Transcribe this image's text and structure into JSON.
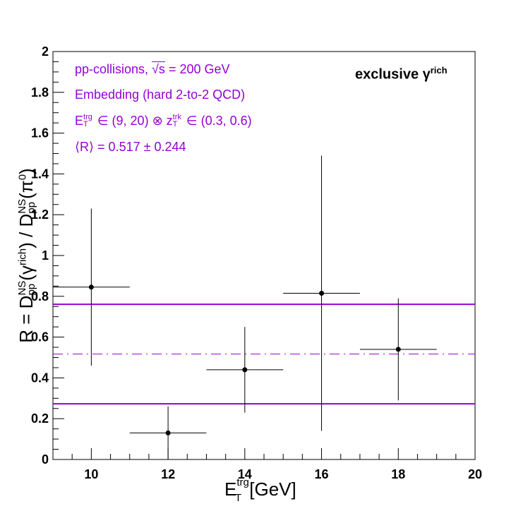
{
  "chart_data": {
    "type": "scatter",
    "title": "exclusive γ^rich",
    "title_main": "exclusive γ",
    "title_sup": "rich",
    "xlabel": "E_T^trg [GeV]",
    "ylabel": "R = D_pp^NS(γ^rich) / D_pp^NS(π^0)",
    "xlim": [
      9,
      20
    ],
    "ylim": [
      0,
      2
    ],
    "x_ticks": [
      "10",
      "12",
      "14",
      "16",
      "18",
      "20"
    ],
    "y_ticks": [
      "0",
      "0.2",
      "0.4",
      "0.6",
      "0.8",
      "1",
      "1.2",
      "1.4",
      "1.6",
      "1.8",
      "2"
    ],
    "grid": false,
    "series": [
      {
        "x": [
          10,
          12,
          14,
          16,
          18
        ],
        "y": [
          0.845,
          0.13,
          0.44,
          0.815,
          0.54
        ],
        "x_err": [
          1,
          1,
          1,
          1,
          1
        ],
        "y_err_low": [
          0.385,
          0.13,
          0.21,
          0.675,
          0.25
        ],
        "y_err_high": [
          0.385,
          0.13,
          0.21,
          0.675,
          0.25
        ],
        "color": "#000000"
      }
    ],
    "reference_lines": {
      "mean": 0.517,
      "upper": 0.761,
      "lower": 0.273,
      "color": "#9400d3",
      "mean_style": "dash-dot",
      "band_style": "solid"
    },
    "annotations": [
      "pp-collisions, √s = 200 GeV",
      "Embedding (hard 2-to-2 QCD)",
      "E_T^trg ∈ (9, 20) ⊗ z_T^trk ∈ (0.3, 0.6)",
      "⟨R⟩ = 0.517 ± 0.244"
    ]
  },
  "text": {
    "annot1_a": "pp-collisions, ",
    "annot1_sqrt": "√s",
    "annot1_b": " = 200 GeV",
    "annot2": "Embedding (hard 2-to-2 QCD)",
    "annot3_e": "E",
    "annot3_trg": "trg",
    "annot3_T1": "T",
    "annot3_mid": " ∈ (9, 20) ⊗ z",
    "annot3_trk": "trk",
    "annot3_T2": "T",
    "annot3_end": " ∈ (0.3, 0.6)",
    "annot4": "⟨R⟩ = 0.517 ± 0.244",
    "xaxis_E": "E",
    "xaxis_trg": "trg",
    "xaxis_T": "T",
    "xaxis_unit": " [GeV]",
    "yaxis_a": "R = D",
    "yaxis_NS1": "NS",
    "yaxis_pp1": "pp",
    "yaxis_b": "(γ",
    "yaxis_rich": "rich",
    "yaxis_c": ") / D",
    "yaxis_NS2": "NS",
    "yaxis_pp2": "pp",
    "yaxis_d": "(π",
    "yaxis_zero": "0",
    "yaxis_e": ")"
  }
}
